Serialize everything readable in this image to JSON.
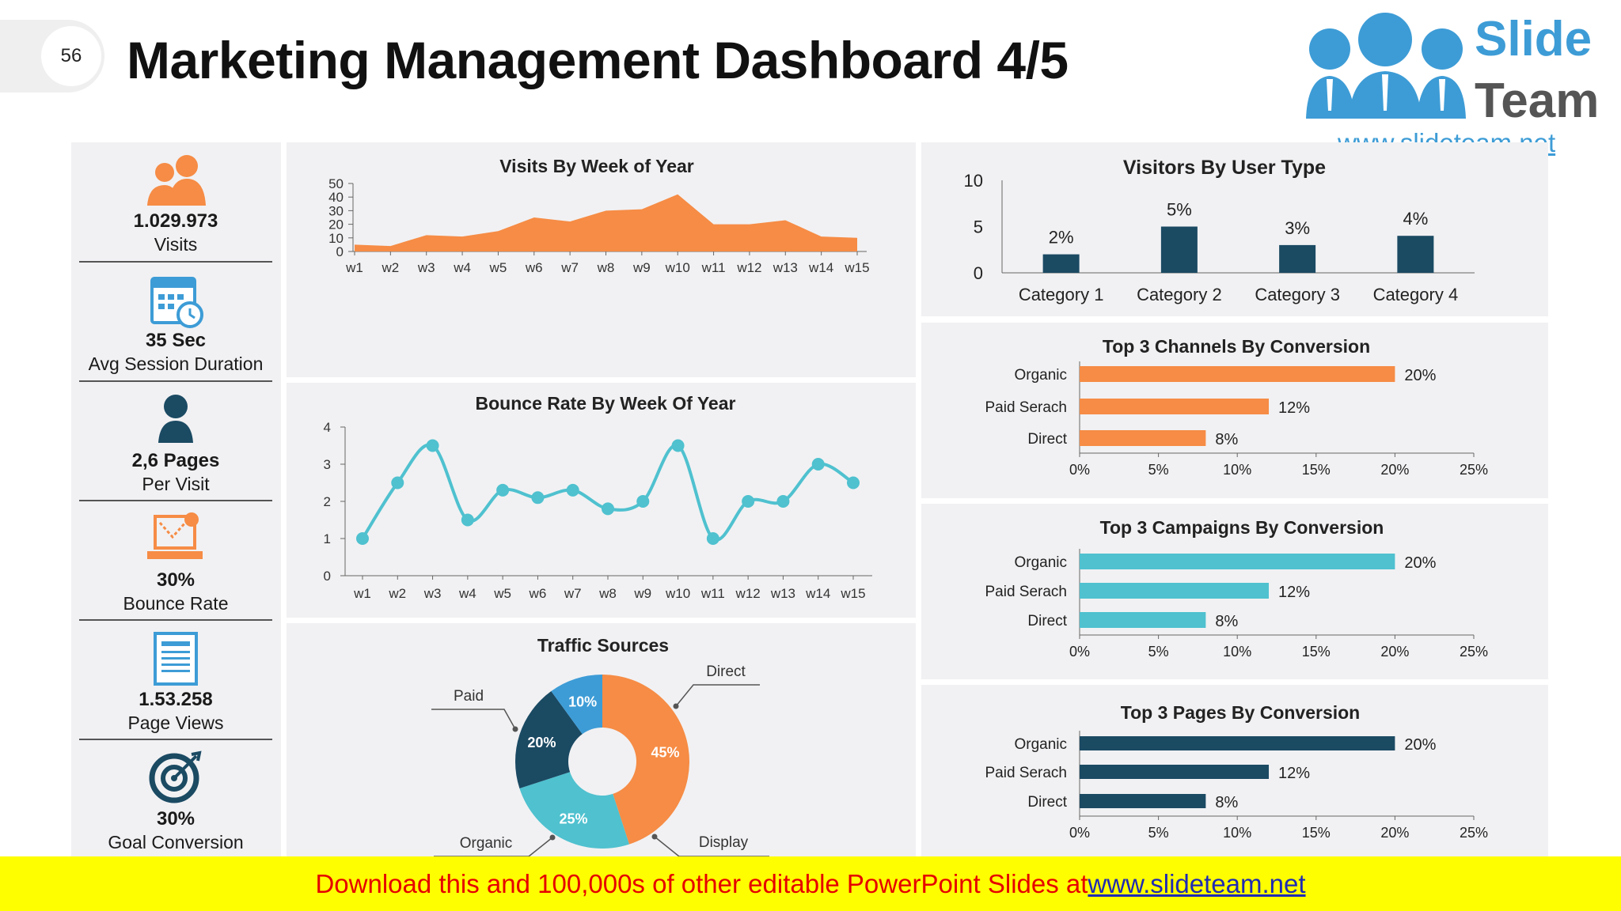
{
  "header": {
    "page_number": "56",
    "title": "Marketing Management Dashboard 4/5"
  },
  "logo": {
    "line1": "Slide",
    "line2": "Team",
    "url": "www.slideteam.net",
    "icon": "people-group-logo"
  },
  "kpis": [
    {
      "value": "1.029.973",
      "label": "Visits",
      "icon": "users-icon"
    },
    {
      "value": "35 Sec",
      "label": "Avg Session Duration",
      "icon": "calendar-clock-icon"
    },
    {
      "value": "2,6 Pages",
      "label": "Per Visit",
      "icon": "user-icon"
    },
    {
      "value": "30%",
      "label": "Bounce Rate",
      "icon": "laptop-bounce-icon"
    },
    {
      "value": "1.53.258",
      "label": "Page Views",
      "icon": "page-icon"
    },
    {
      "value": "30%",
      "label": "Goal Conversion",
      "icon": "target-icon"
    }
  ],
  "colors": {
    "orange": "#F68C45",
    "teal": "#4FC1CF",
    "navy": "#1B4A63",
    "blue": "#3D9CD6",
    "panel": "#F1F1F3"
  },
  "chart_data": [
    {
      "type": "area",
      "title": "Visits By Week of Year",
      "categories": [
        "w1",
        "w2",
        "w3",
        "w4",
        "w5",
        "w6",
        "w7",
        "w8",
        "w9",
        "w10",
        "w11",
        "w12",
        "w13",
        "w14",
        "w15"
      ],
      "values": [
        5,
        4,
        12,
        11,
        15,
        25,
        22,
        30,
        31,
        42,
        20,
        20,
        23,
        11,
        10
      ],
      "ylim": [
        0,
        50
      ],
      "yticks": [
        0,
        10,
        20,
        30,
        40,
        50
      ],
      "color": "#F68C45"
    },
    {
      "type": "line",
      "title": "Bounce Rate By Week Of Year",
      "categories": [
        "w1",
        "w2",
        "w3",
        "w4",
        "w5",
        "w6",
        "w7",
        "w8",
        "w9",
        "w10",
        "w11",
        "w12",
        "w13",
        "w14",
        "w15"
      ],
      "values": [
        1,
        2.5,
        3.5,
        1.5,
        2.3,
        2.1,
        2.3,
        1.8,
        2,
        3.5,
        1,
        2,
        2,
        3,
        2.5
      ],
      "ylim": [
        0,
        4
      ],
      "yticks": [
        0,
        1,
        2,
        3,
        4
      ],
      "color": "#4FC1CF"
    },
    {
      "type": "pie",
      "title": "Traffic Sources",
      "slices": [
        {
          "name": "Direct",
          "value": 45,
          "label": "45%",
          "color": "#F68C45"
        },
        {
          "name": "Display",
          "value": 25,
          "label": "25%",
          "color": "#4FC1CF"
        },
        {
          "name": "Organic",
          "value": 20,
          "label": "20%",
          "color": "#1B4A63"
        },
        {
          "name": "Paid",
          "value": 10,
          "label": "10%",
          "color": "#3D9CD6"
        }
      ]
    },
    {
      "type": "bar",
      "title": "Visitors By User Type",
      "categories": [
        "Category 1",
        "Category 2",
        "Category 3",
        "Category 4"
      ],
      "values": [
        2,
        5,
        3,
        4
      ],
      "data_labels": [
        "2%",
        "5%",
        "3%",
        "4%"
      ],
      "ylim": [
        0,
        10
      ],
      "yticks": [
        0,
        5,
        10
      ],
      "color": "#1B4A63"
    },
    {
      "type": "bar",
      "orientation": "horizontal",
      "title": "Top 3 Channels By Conversion",
      "categories": [
        "Organic",
        "Paid Serach",
        "Direct"
      ],
      "values": [
        20,
        12,
        8
      ],
      "data_labels": [
        "20%",
        "12%",
        "8%"
      ],
      "xlim": [
        0,
        25
      ],
      "xticks": [
        "0%",
        "5%",
        "10%",
        "15%",
        "20%",
        "25%"
      ],
      "color": "#F68C45"
    },
    {
      "type": "bar",
      "orientation": "horizontal",
      "title": "Top 3 Campaigns By Conversion",
      "categories": [
        "Organic",
        "Paid Serach",
        "Direct"
      ],
      "values": [
        20,
        12,
        8
      ],
      "data_labels": [
        "20%",
        "12%",
        "8%"
      ],
      "xlim": [
        0,
        25
      ],
      "xticks": [
        "0%",
        "5%",
        "10%",
        "15%",
        "20%",
        "25%"
      ],
      "color": "#4FC1CF"
    },
    {
      "type": "bar",
      "orientation": "horizontal",
      "title": "Top 3 Pages By Conversion",
      "categories": [
        "Organic",
        "Paid Serach",
        "Direct"
      ],
      "values": [
        20,
        12,
        8
      ],
      "data_labels": [
        "20%",
        "12%",
        "8%"
      ],
      "xlim": [
        0,
        25
      ],
      "xticks": [
        "0%",
        "5%",
        "10%",
        "15%",
        "20%",
        "25%"
      ],
      "color": "#1B4A63"
    }
  ],
  "banner": {
    "text": "Download this and 100,000s of other editable PowerPoint Slides at ",
    "link": "www.slideteam.net"
  }
}
